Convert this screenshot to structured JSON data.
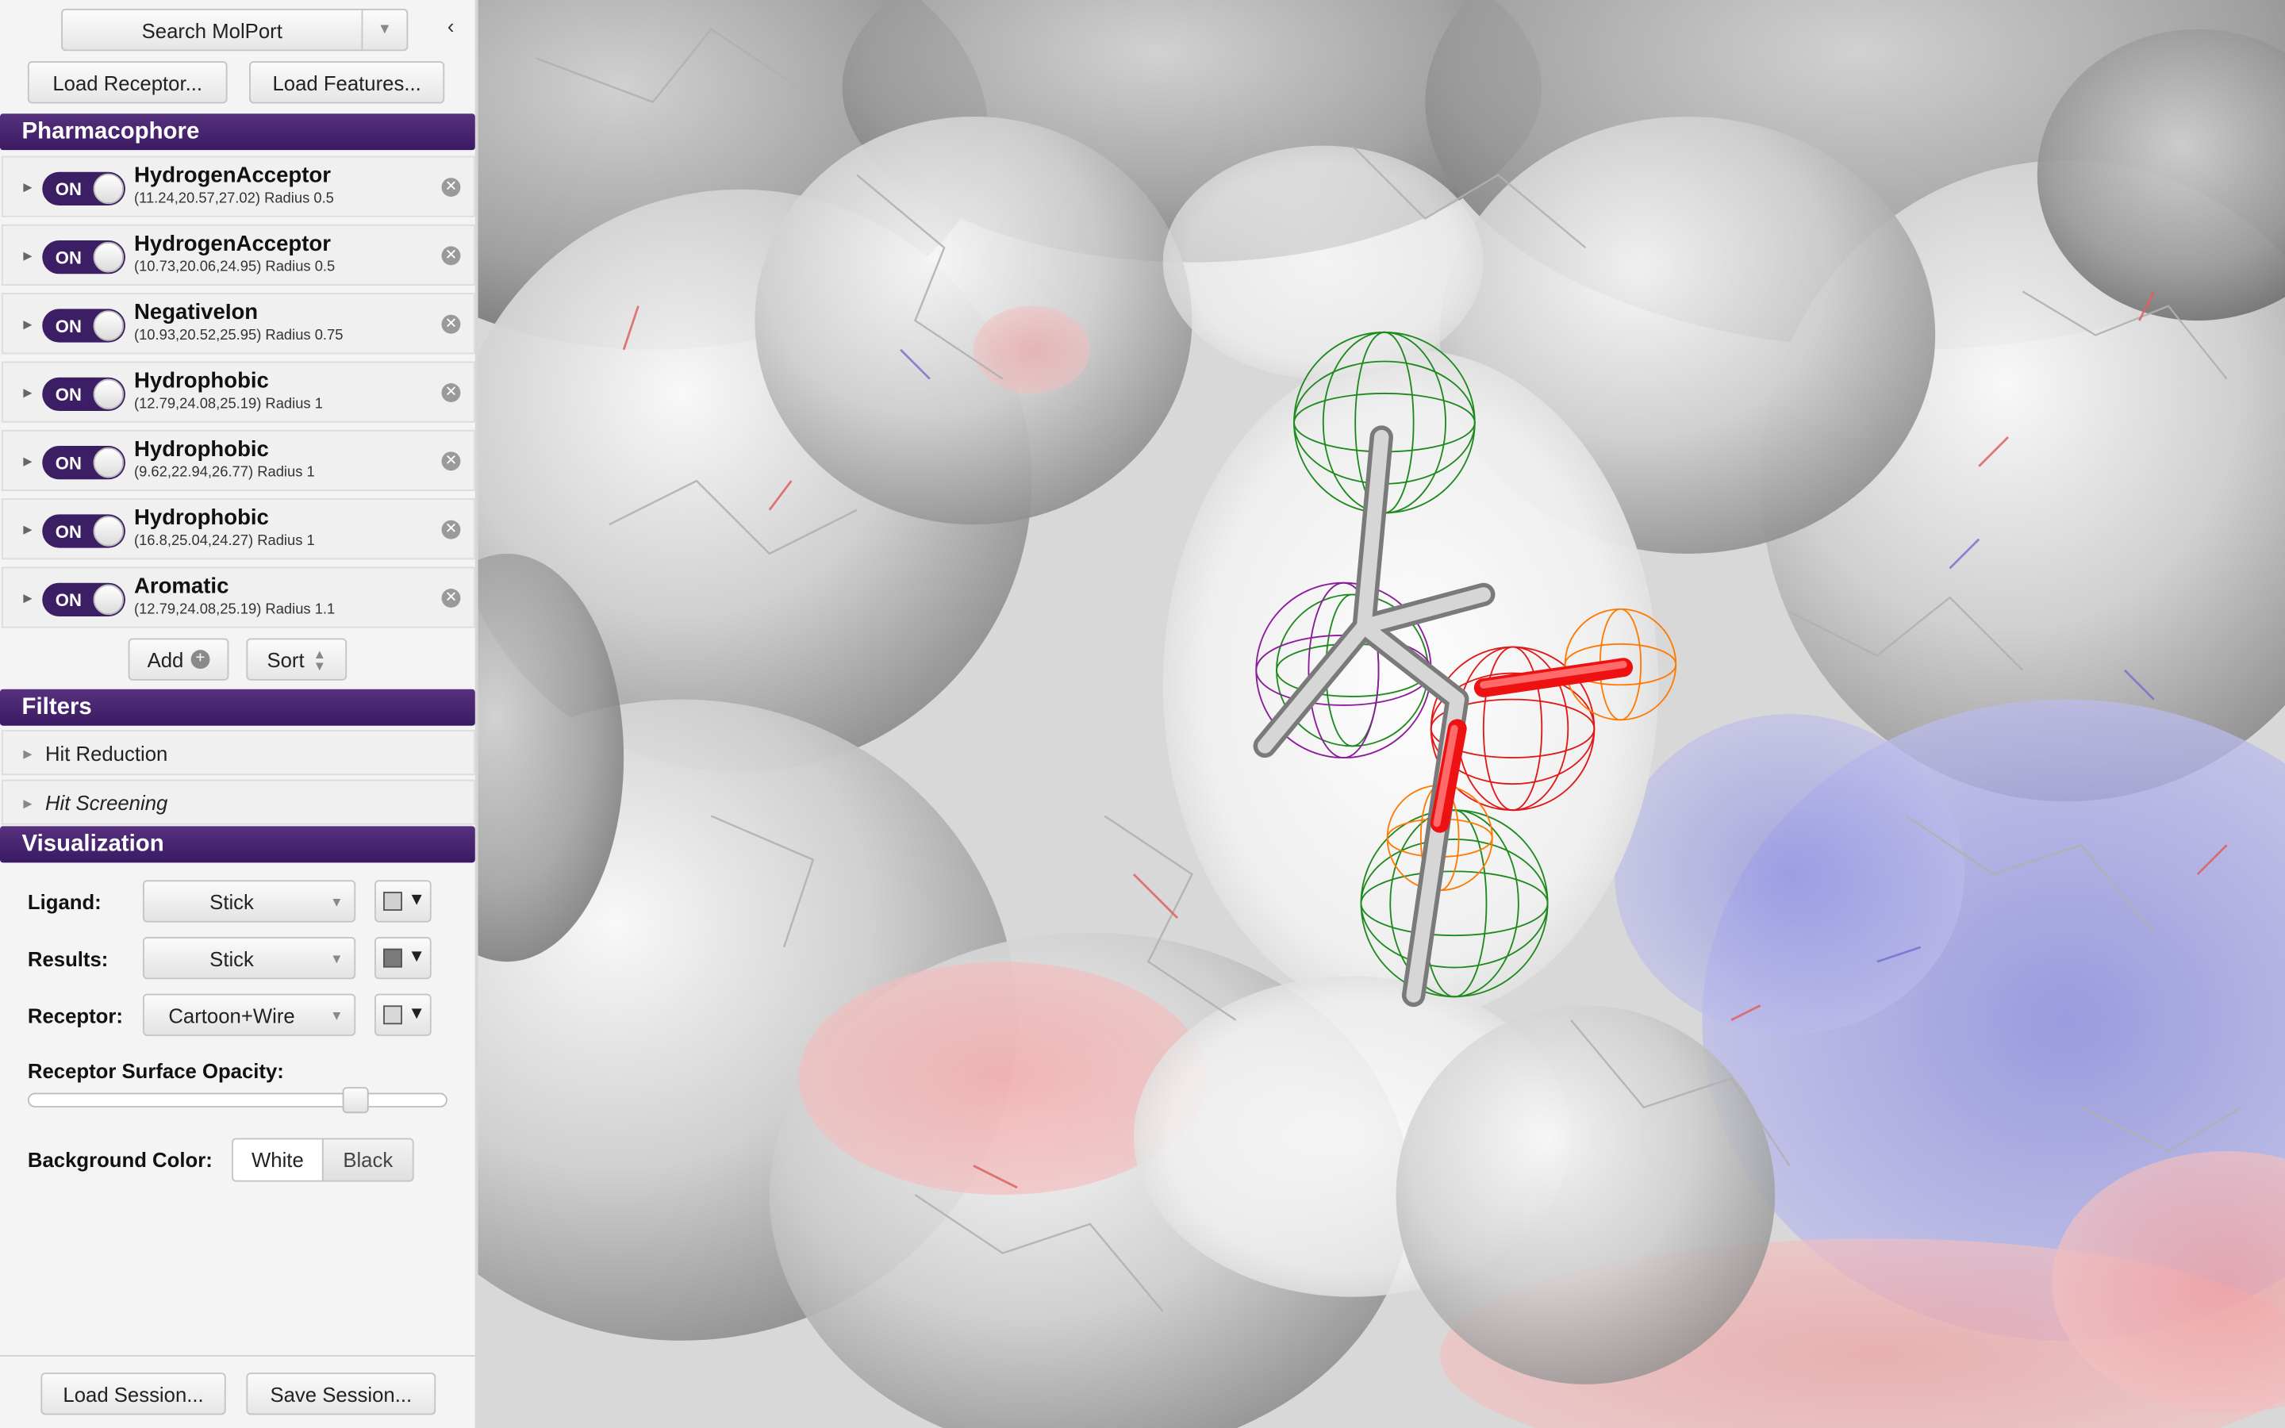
{
  "toolbar": {
    "search_label": "Search MolPort",
    "collapse_glyph": "‹",
    "load_receptor_label": "Load Receptor...",
    "load_features_label": "Load Features..."
  },
  "pharmacophore": {
    "header": "Pharmacophore",
    "toggle_label": "ON",
    "features": [
      {
        "name": "HydrogenAcceptor",
        "coords": "(11.24,20.57,27.02)",
        "radius": "Radius 0.5"
      },
      {
        "name": "HydrogenAcceptor",
        "coords": "(10.73,20.06,24.95)",
        "radius": "Radius 0.5"
      },
      {
        "name": "NegativeIon",
        "coords": "(10.93,20.52,25.95)",
        "radius": "Radius 0.75"
      },
      {
        "name": "Hydrophobic",
        "coords": "(12.79,24.08,25.19)",
        "radius": "Radius 1"
      },
      {
        "name": "Hydrophobic",
        "coords": "(9.62,22.94,26.77)",
        "radius": "Radius 1"
      },
      {
        "name": "Hydrophobic",
        "coords": "(16.8,25.04,24.27)",
        "radius": "Radius 1"
      },
      {
        "name": "Aromatic",
        "coords": "(12.79,24.08,25.19)",
        "radius": "Radius 1.1"
      }
    ],
    "add_label": "Add",
    "sort_label": "Sort"
  },
  "filters": {
    "header": "Filters",
    "items": [
      "Hit Reduction",
      "Hit Screening"
    ]
  },
  "visualization": {
    "header": "Visualization",
    "ligand_label": "Ligand:",
    "ligand_value": "Stick",
    "ligand_color": "#d0d0d0",
    "results_label": "Results:",
    "results_value": "Stick",
    "results_color": "#7a7a7a",
    "receptor_label": "Receptor:",
    "receptor_value": "Cartoon+Wire",
    "receptor_color": "#d8d8d8",
    "opacity_label": "Receptor Surface Opacity:",
    "opacity_value": 0.8,
    "background_label": "Background Color:",
    "bg_options": [
      "White",
      "Black"
    ],
    "bg_selected": "White"
  },
  "session": {
    "load_label": "Load Session...",
    "save_label": "Save Session..."
  },
  "colors": {
    "accent": "#3f1f68",
    "hydrophobic": "#1c8a1c",
    "acceptor": "#ff7a00",
    "negative_ion": "#e01818",
    "aromatic": "#8a1a9a",
    "surface_positive": "#8e8ee0",
    "surface_negative": "#f0a0a0"
  }
}
